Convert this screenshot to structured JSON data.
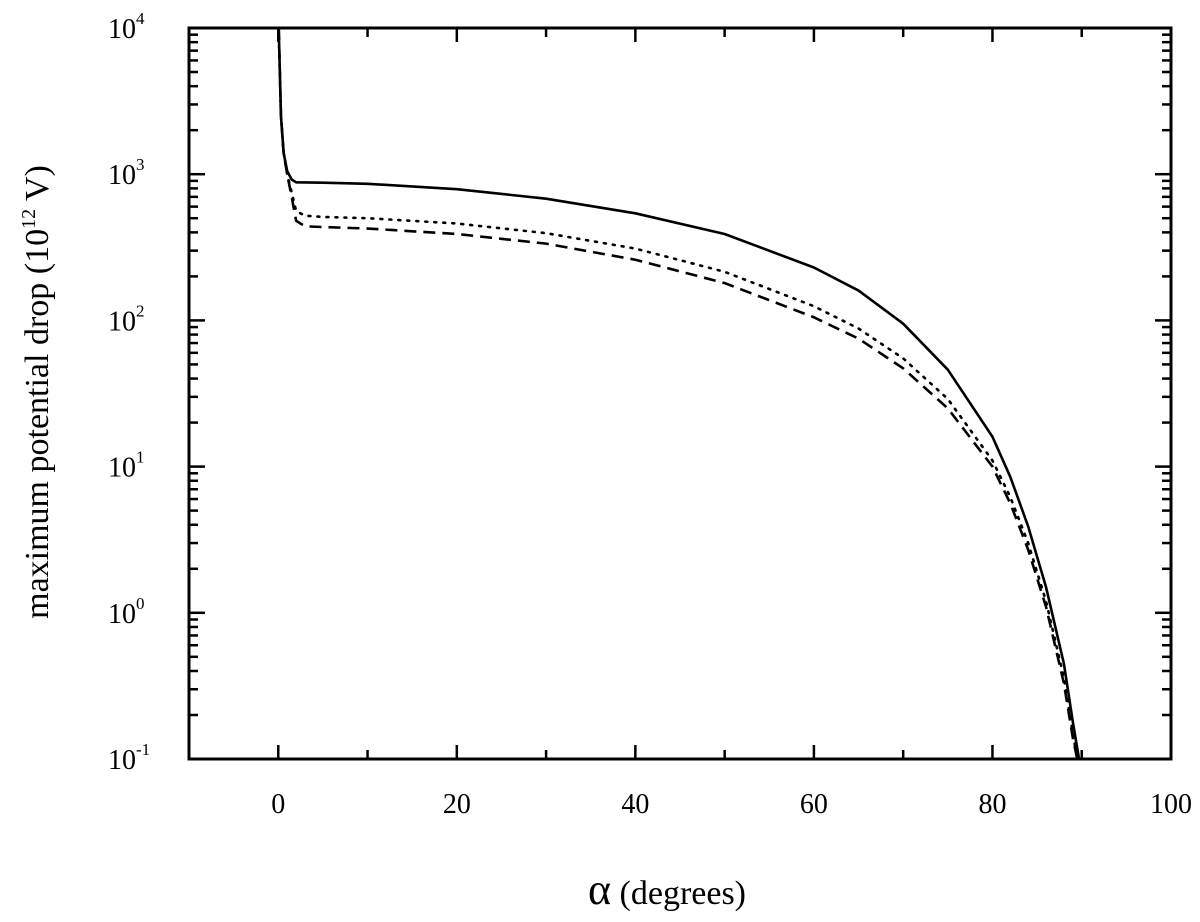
{
  "chart_data": {
    "type": "line",
    "title": "",
    "xlabel": {
      "symbol": "α",
      "text": " (degrees)"
    },
    "ylabel": {
      "prefix": "maximum potential drop (10",
      "exponent": "12",
      "suffix": " V)"
    },
    "xlim": [
      -10,
      100
    ],
    "ylim": [
      0.1,
      10000
    ],
    "yscale": "log",
    "grid": false,
    "legend": "none",
    "x_ticks": [
      {
        "value": 0,
        "label": "0"
      },
      {
        "value": 20,
        "label": "20"
      },
      {
        "value": 40,
        "label": "40"
      },
      {
        "value": 60,
        "label": "60"
      },
      {
        "value": 80,
        "label": "80"
      },
      {
        "value": 100,
        "label": "100"
      }
    ],
    "y_ticks": [
      {
        "value": 0.1,
        "base": "10",
        "exp": "-1"
      },
      {
        "value": 1,
        "base": "10",
        "exp": "0"
      },
      {
        "value": 10,
        "base": "10",
        "exp": "1"
      },
      {
        "value": 100,
        "base": "10",
        "exp": "2"
      },
      {
        "value": 1000,
        "base": "10",
        "exp": "3"
      },
      {
        "value": 10000,
        "base": "10",
        "exp": "4"
      }
    ],
    "series": [
      {
        "style": "solid",
        "x": [
          0.05,
          0.3,
          0.6,
          1,
          1.5,
          2,
          5,
          10,
          20,
          30,
          40,
          50,
          60,
          65,
          70,
          75,
          80,
          82,
          84,
          86,
          88,
          89,
          89.7
        ],
        "y": [
          10000,
          2500,
          1400,
          1050,
          920,
          880,
          875,
          860,
          790,
          680,
          540,
          390,
          230,
          160,
          95,
          46,
          16,
          8.5,
          3.9,
          1.5,
          0.45,
          0.18,
          0.1
        ]
      },
      {
        "style": "dotted",
        "x": [
          0.05,
          0.3,
          0.6,
          1,
          1.5,
          2,
          3,
          5,
          10,
          20,
          30,
          40,
          50,
          60,
          65,
          70,
          75,
          80,
          82,
          84,
          86,
          88,
          89,
          89.5
        ],
        "y": [
          10000,
          2500,
          1400,
          1000,
          750,
          560,
          520,
          510,
          500,
          460,
          395,
          310,
          215,
          125,
          88,
          55,
          29,
          11,
          6.2,
          3,
          1.2,
          0.36,
          0.15,
          0.1
        ]
      },
      {
        "style": "dashed",
        "x": [
          0.05,
          0.3,
          0.6,
          1,
          1.5,
          2,
          3,
          5,
          10,
          20,
          30,
          40,
          50,
          60,
          65,
          70,
          75,
          80,
          82,
          84,
          86,
          88,
          89,
          89.5
        ],
        "y": [
          10000,
          2500,
          1400,
          1000,
          700,
          480,
          440,
          435,
          425,
          390,
          335,
          260,
          180,
          105,
          75,
          47,
          25,
          10,
          5.6,
          2.7,
          1.1,
          0.33,
          0.14,
          0.1
        ]
      }
    ]
  }
}
